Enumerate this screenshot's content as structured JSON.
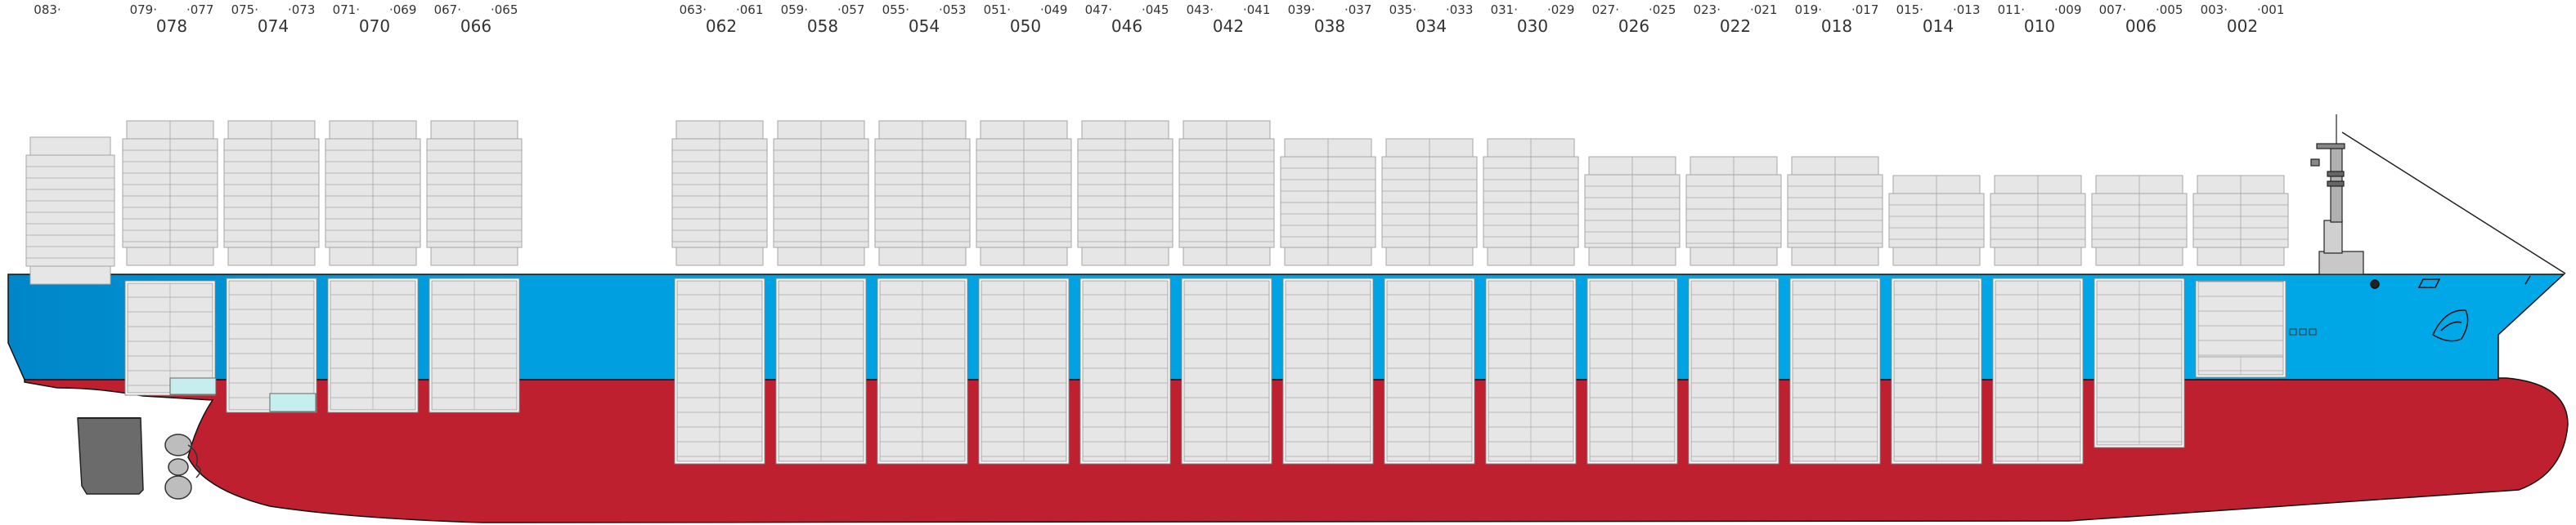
{
  "diagram": {
    "colors": {
      "hull_upper": "#00a0e0",
      "hull_upper_dark": "#0086c8",
      "hull_lower": "#bf2030",
      "container": "#e6e6e6",
      "container_line": "#a6a6a6",
      "reefer": "#c6eeee",
      "rudder": "#6b6b6b",
      "propeller": "#bdbdbd",
      "superstructure": "#c8c8c8"
    },
    "bay_labels": [
      {
        "odd_left": "083·",
        "odd_right": "",
        "even": ""
      },
      {
        "odd_left": "079·",
        "odd_right": "·077",
        "even": "078"
      },
      {
        "odd_left": "075·",
        "odd_right": "·073",
        "even": "074"
      },
      {
        "odd_left": "071·",
        "odd_right": "·069",
        "even": "070"
      },
      {
        "odd_left": "067·",
        "odd_right": "·065",
        "even": "066"
      },
      {
        "odd_left": "063·",
        "odd_right": "·061",
        "even": "062"
      },
      {
        "odd_left": "059·",
        "odd_right": "·057",
        "even": "058"
      },
      {
        "odd_left": "055·",
        "odd_right": "·053",
        "even": "054"
      },
      {
        "odd_left": "051·",
        "odd_right": "·049",
        "even": "050"
      },
      {
        "odd_left": "047·",
        "odd_right": "·045",
        "even": "046"
      },
      {
        "odd_left": "043·",
        "odd_right": "·041",
        "even": "042"
      },
      {
        "odd_left": "039·",
        "odd_right": "·037",
        "even": "038"
      },
      {
        "odd_left": "035·",
        "odd_right": "·033",
        "even": "034"
      },
      {
        "odd_left": "031·",
        "odd_right": "·029",
        "even": "030"
      },
      {
        "odd_left": "027·",
        "odd_right": "·025",
        "even": "026"
      },
      {
        "odd_left": "023·",
        "odd_right": "·021",
        "even": "022"
      },
      {
        "odd_left": "019·",
        "odd_right": "·017",
        "even": "018"
      },
      {
        "odd_left": "015·",
        "odd_right": "·013",
        "even": "014"
      },
      {
        "odd_left": "011·",
        "odd_right": "·009",
        "even": "010"
      },
      {
        "odd_left": "007·",
        "odd_right": "·005",
        "even": "006"
      },
      {
        "odd_left": "003·",
        "odd_right": "·001",
        "even": "002"
      }
    ]
  }
}
